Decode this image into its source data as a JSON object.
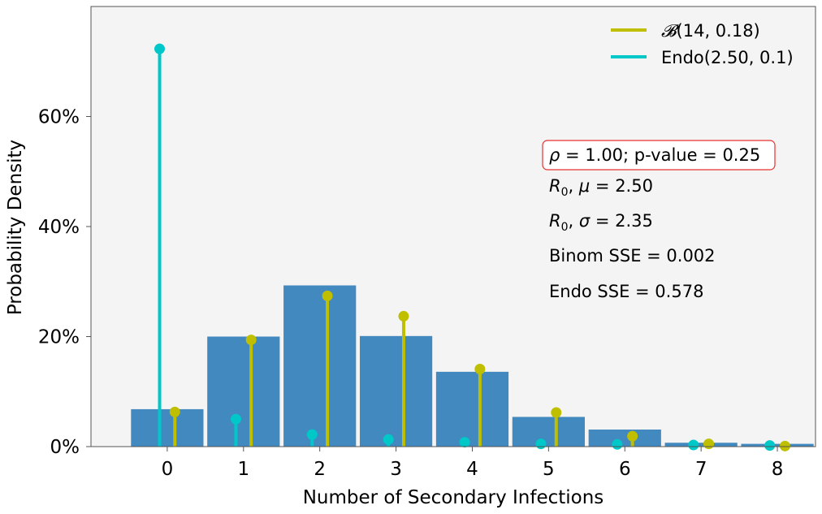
{
  "chart_data": {
    "type": "bar",
    "xlabel": "Number of Secondary Infections",
    "ylabel": "Probability Density",
    "categories": [
      "0",
      "1",
      "2",
      "3",
      "4",
      "5",
      "6",
      "7",
      "8"
    ],
    "x": [
      0,
      1,
      2,
      3,
      4,
      5,
      6,
      7,
      8
    ],
    "xlim": [
      -1.0,
      8.5
    ],
    "ylim": [
      0,
      80
    ],
    "y_ticks": [
      0,
      20,
      40,
      60
    ],
    "y_tick_labels": [
      "0%",
      "20%",
      "40%",
      "60%"
    ],
    "grid": false,
    "legend_position": "top-right",
    "histogram": {
      "values": [
        6.8,
        20.0,
        29.3,
        20.1,
        13.6,
        5.4,
        3.1,
        0.7,
        0.5
      ],
      "color": "#4189bf"
    },
    "series": [
      {
        "name": "B(14, 0.18)",
        "legend_script": "𝓑",
        "legend_rest": "(14, 0.18)",
        "kind": "stem",
        "color": "#bfbf00",
        "values": [
          6.3,
          19.4,
          27.4,
          23.7,
          14.1,
          6.2,
          1.9,
          0.5,
          0.1
        ]
      },
      {
        "name": "Endo(2.50, 0.1)",
        "kind": "stem",
        "color": "#00c8c8",
        "values": [
          72.3,
          5.0,
          2.2,
          1.3,
          0.8,
          0.5,
          0.4,
          0.3,
          0.2
        ]
      }
    ],
    "annotations": {
      "rho": {
        "symbol": "ρ",
        "text": " = 1.00; p-value = 0.25"
      },
      "r0_mu": {
        "r": "R",
        "sub": "0",
        "sym": "μ",
        "text": " = 2.50"
      },
      "r0_sigma": {
        "r": "R",
        "sub": "0",
        "sym": "σ",
        "text": " = 2.35"
      },
      "binom_sse": "Binom SSE = 0.002",
      "endo_sse": "Endo SSE = 0.578"
    },
    "annotation_box_color": "#e8302f"
  }
}
